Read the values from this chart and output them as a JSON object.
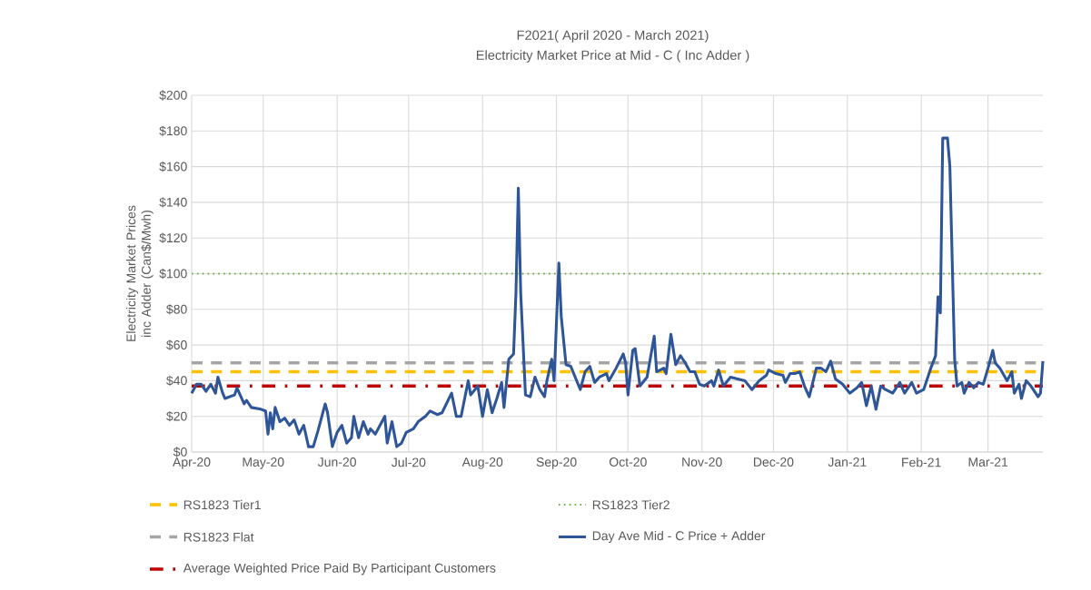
{
  "chart_data": {
    "type": "line",
    "title": "F2021( April 2020 - March 2021)",
    "subtitle": "Electricity Market Price at Mid - C ( Inc Adder )",
    "ylabel": "Electricity Market Prices inc Adder (Can$/Mwh)",
    "xlim": [
      "2020-04-01",
      "2021-03-24"
    ],
    "xticks": [
      {
        "value": "2020-04-01",
        "label": "Apr-20"
      },
      {
        "value": "2020-05-01",
        "label": "May-20"
      },
      {
        "value": "2020-06-01",
        "label": "Jun-20"
      },
      {
        "value": "2020-07-01",
        "label": "Jul-20"
      },
      {
        "value": "2020-08-01",
        "label": "Aug-20"
      },
      {
        "value": "2020-09-01",
        "label": "Sep-20"
      },
      {
        "value": "2020-10-01",
        "label": "Oct-20"
      },
      {
        "value": "2020-11-01",
        "label": "Nov-20"
      },
      {
        "value": "2020-12-01",
        "label": "Dec-20"
      },
      {
        "value": "2021-01-01",
        "label": "Jan-21"
      },
      {
        "value": "2021-02-01",
        "label": "Feb-21"
      },
      {
        "value": "2021-03-01",
        "label": "Mar-21"
      }
    ],
    "ylim": [
      0,
      200
    ],
    "yticks": [
      {
        "value": 0,
        "label": "$0"
      },
      {
        "value": 20,
        "label": "$20"
      },
      {
        "value": 40,
        "label": "$40"
      },
      {
        "value": 60,
        "label": "$60"
      },
      {
        "value": 80,
        "label": "$80"
      },
      {
        "value": 100,
        "label": "$100"
      },
      {
        "value": 120,
        "label": "$120"
      },
      {
        "value": 140,
        "label": "$140"
      },
      {
        "value": 160,
        "label": "$160"
      },
      {
        "value": 180,
        "label": "$180"
      },
      {
        "value": 200,
        "label": "$200"
      }
    ],
    "grid": true,
    "legend": "bottom",
    "line_style": "solid",
    "ref_lines": [
      {
        "axis": "y",
        "value": 45,
        "label": "RS1823 Tier1",
        "color": "#ffc000",
        "line_style": "dashed"
      },
      {
        "axis": "y",
        "value": 100,
        "label": "RS1823 Tier2",
        "color": "#70ad47",
        "line_style": "dotted"
      },
      {
        "axis": "y",
        "value": 50,
        "label": "RS1823 Flat",
        "color": "#a5a5a5",
        "line_style": "dashed"
      },
      {
        "axis": "y",
        "value": 37,
        "label": "Average Weighted Price Paid By Participant Customers",
        "color": "#c00000",
        "line_style": "dashdot"
      }
    ],
    "series": [
      {
        "name": "Day Ave Mid - C Price + Adder",
        "color": "#2e5597",
        "x": [
          "2020-04-01",
          "2020-04-03",
          "2020-04-05",
          "2020-04-07",
          "2020-04-09",
          "2020-04-11",
          "2020-04-12",
          "2020-04-14",
          "2020-04-15",
          "2020-04-19",
          "2020-04-20",
          "2020-04-23",
          "2020-04-24",
          "2020-04-26",
          "2020-04-30",
          "2020-05-02",
          "2020-05-03",
          "2020-05-04",
          "2020-05-05",
          "2020-05-06",
          "2020-05-08",
          "2020-05-10",
          "2020-05-12",
          "2020-05-14",
          "2020-05-16",
          "2020-05-18",
          "2020-05-20",
          "2020-05-22",
          "2020-05-24",
          "2020-05-27",
          "2020-05-28",
          "2020-05-30",
          "2020-06-01",
          "2020-06-03",
          "2020-06-05",
          "2020-06-07",
          "2020-06-08",
          "2020-06-10",
          "2020-06-12",
          "2020-06-14",
          "2020-06-15",
          "2020-06-17",
          "2020-06-19",
          "2020-06-21",
          "2020-06-22",
          "2020-06-24",
          "2020-06-26",
          "2020-06-28",
          "2020-06-30",
          "2020-07-03",
          "2020-07-05",
          "2020-07-08",
          "2020-07-10",
          "2020-07-13",
          "2020-07-15",
          "2020-07-19",
          "2020-07-21",
          "2020-07-23",
          "2020-07-26",
          "2020-07-27",
          "2020-07-30",
          "2020-08-01",
          "2020-08-03",
          "2020-08-05",
          "2020-08-07",
          "2020-08-09",
          "2020-08-10",
          "2020-08-12",
          "2020-08-14",
          "2020-08-15",
          "2020-08-16",
          "2020-08-17",
          "2020-08-19",
          "2020-08-21",
          "2020-08-23",
          "2020-08-25",
          "2020-08-27",
          "2020-08-28",
          "2020-08-30",
          "2020-08-31",
          "2020-09-02",
          "2020-09-03",
          "2020-09-05",
          "2020-09-07",
          "2020-09-11",
          "2020-09-13",
          "2020-09-15",
          "2020-09-17",
          "2020-09-19",
          "2020-09-22",
          "2020-09-23",
          "2020-09-26",
          "2020-09-29",
          "2020-09-30",
          "2020-10-01",
          "2020-10-03",
          "2020-10-04",
          "2020-10-06",
          "2020-10-09",
          "2020-10-12",
          "2020-10-13",
          "2020-10-16",
          "2020-10-17",
          "2020-10-19",
          "2020-10-21",
          "2020-10-23",
          "2020-10-25",
          "2020-10-27",
          "2020-10-29",
          "2020-10-31",
          "2020-11-02",
          "2020-11-05",
          "2020-11-06",
          "2020-11-08",
          "2020-11-10",
          "2020-11-13",
          "2020-11-16",
          "2020-11-19",
          "2020-11-22",
          "2020-11-25",
          "2020-11-28",
          "2020-11-29",
          "2020-12-02",
          "2020-12-05",
          "2020-12-06",
          "2020-12-08",
          "2020-12-10",
          "2020-12-12",
          "2020-12-14",
          "2020-12-16",
          "2020-12-19",
          "2020-12-21",
          "2020-12-23",
          "2020-12-25",
          "2020-12-27",
          "2020-12-30",
          "2021-01-02",
          "2021-01-05",
          "2021-01-07",
          "2021-01-09",
          "2021-01-11",
          "2021-01-13",
          "2021-01-15",
          "2021-01-17",
          "2021-01-20",
          "2021-01-23",
          "2021-01-25",
          "2021-01-28",
          "2021-01-30",
          "2021-02-02",
          "2021-02-05",
          "2021-02-07",
          "2021-02-08",
          "2021-02-09",
          "2021-02-10",
          "2021-02-12",
          "2021-02-13",
          "2021-02-15",
          "2021-02-16",
          "2021-02-18",
          "2021-02-19",
          "2021-02-21",
          "2021-02-23",
          "2021-02-25",
          "2021-02-27",
          "2021-03-01",
          "2021-03-03",
          "2021-03-04",
          "2021-03-06",
          "2021-03-09",
          "2021-03-11",
          "2021-03-12",
          "2021-03-14",
          "2021-03-15",
          "2021-03-17",
          "2021-03-19",
          "2021-03-22",
          "2021-03-23",
          "2021-03-24"
        ],
        "values": [
          33,
          38,
          38,
          34,
          38,
          33,
          42,
          33,
          30,
          32,
          36,
          27,
          29,
          25,
          24,
          23,
          10,
          22,
          13,
          25,
          17,
          19,
          15,
          18,
          10,
          15,
          3,
          3,
          12,
          27,
          22,
          3,
          11,
          15,
          5,
          8,
          20,
          8,
          17,
          10,
          13,
          10,
          15,
          20,
          5,
          17,
          3,
          5,
          11,
          13,
          17,
          20,
          23,
          21,
          22,
          33,
          20,
          20,
          40,
          32,
          37,
          20,
          35,
          22,
          30,
          39,
          25,
          52,
          55,
          89,
          148,
          89,
          32,
          31,
          42,
          35,
          31,
          40,
          52,
          40,
          106,
          76,
          49,
          48,
          35,
          45,
          48,
          39,
          42,
          44,
          40,
          47,
          55,
          50,
          32,
          57,
          58,
          37,
          42,
          65,
          45,
          47,
          44,
          66,
          49,
          54,
          50,
          45,
          45,
          38,
          37,
          40,
          37,
          46,
          37,
          42,
          41,
          40,
          35,
          40,
          43,
          46,
          44,
          43,
          39,
          44,
          44,
          45,
          37,
          31,
          47,
          47,
          45,
          51,
          41,
          38,
          33,
          36,
          39,
          26,
          37,
          24,
          37,
          35,
          33,
          39,
          33,
          39,
          33,
          35,
          47,
          54,
          87,
          78,
          176,
          176,
          160,
          52,
          37,
          39,
          33,
          39,
          36,
          39,
          38,
          47,
          57,
          50,
          47,
          40,
          45,
          33,
          38,
          30,
          40,
          37,
          31,
          33,
          51
        ]
      }
    ]
  }
}
